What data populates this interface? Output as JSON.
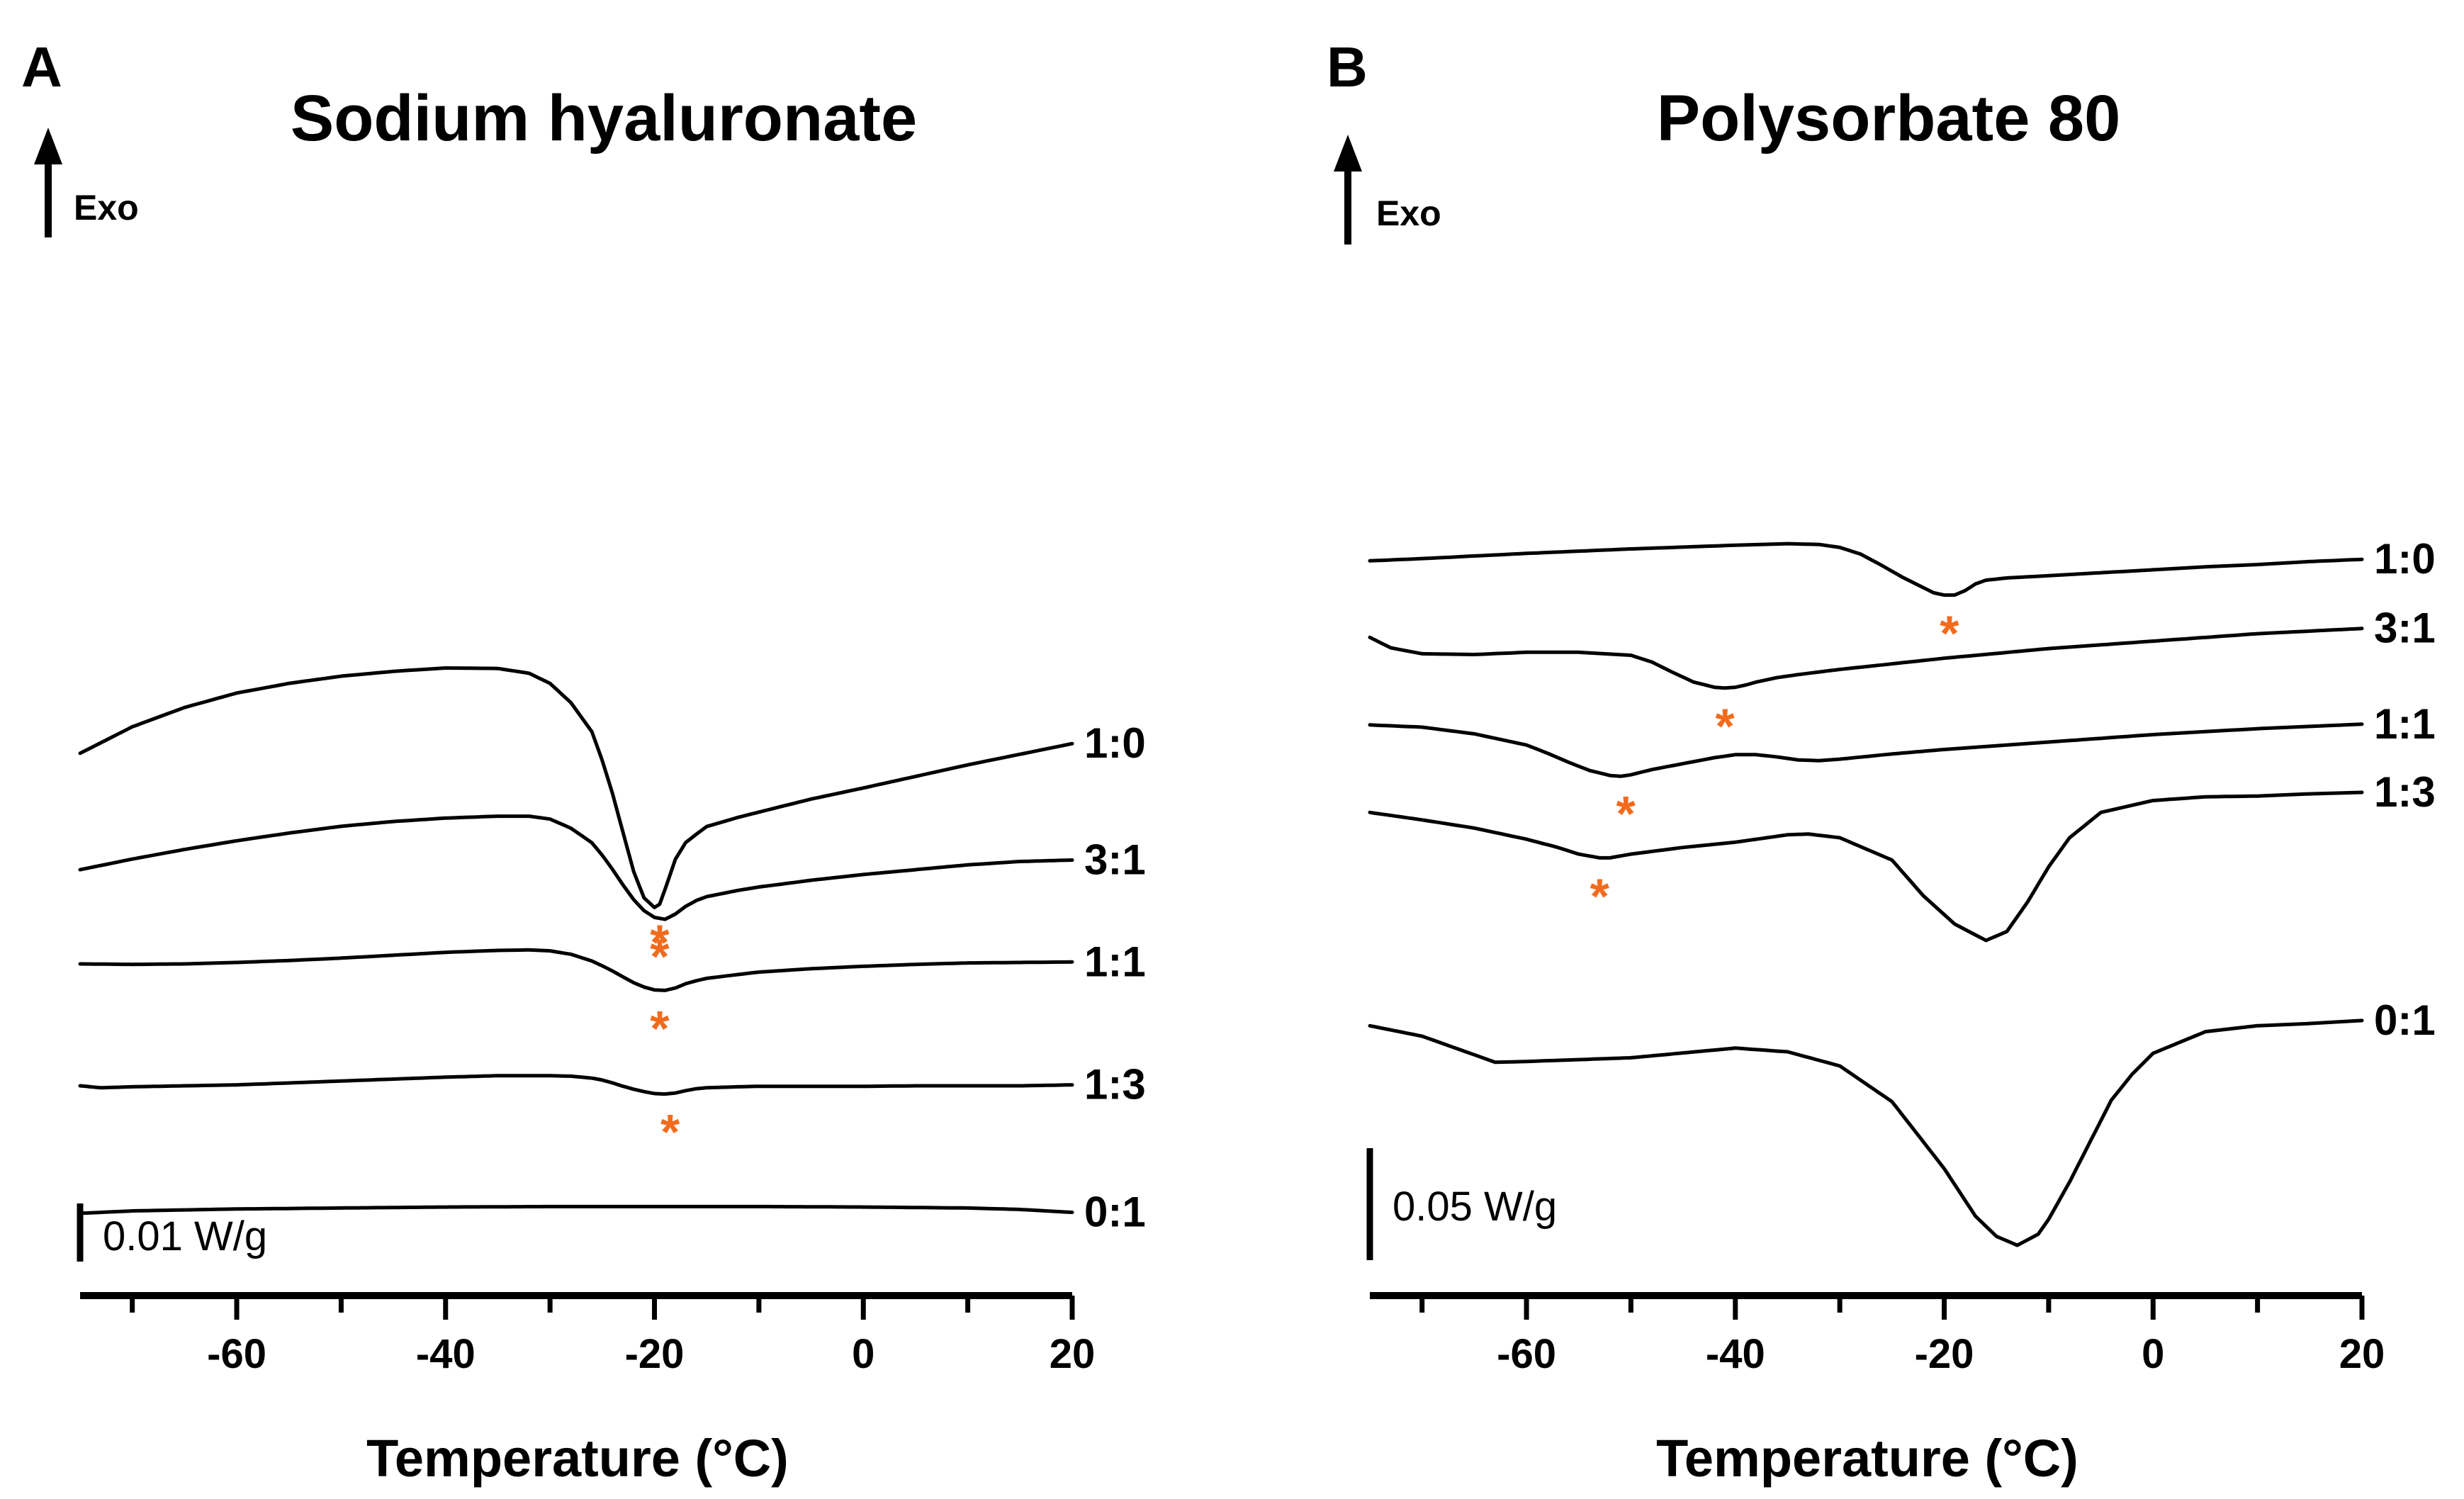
{
  "chart_data": [
    {
      "type": "line",
      "panel_label": "A",
      "title": "Sodium hyaluronate",
      "xlabel": "Temperature (°C)",
      "ylabel": "Exo",
      "xlim": [
        -75,
        20
      ],
      "x_ticks": [
        -60,
        -40,
        -20,
        0,
        20
      ],
      "x_tick_labels": [
        "-60",
        "-40",
        "-20",
        "0",
        "20"
      ],
      "scale_bar": {
        "label": "0.01 W/g",
        "value": 0.01,
        "units": "W/g"
      },
      "marker_symbol": "*",
      "marker_color": "#f26b1d",
      "y_units_per_W_g": 10000,
      "series": [
        {
          "name": "1:0",
          "offset": 1.9,
          "x": [
            -75,
            -70,
            -65,
            -60,
            -55,
            -50,
            -45,
            -40,
            -35,
            -32,
            -30,
            -28,
            -26,
            -25,
            -24,
            -23,
            -22,
            -21,
            -20,
            -19.5,
            -19,
            -18,
            -17,
            -16,
            -15,
            -12,
            -10,
            -5,
            0,
            5,
            10,
            15,
            20
          ],
          "y": [
            0,
            55,
            95,
            125,
            145,
            160,
            170,
            177,
            176,
            166,
            145,
            105,
            45,
            -15,
            -85,
            -165,
            -245,
            -300,
            -320,
            -313,
            -283,
            -220,
            -185,
            -168,
            -152,
            -133,
            -122,
            -95,
            -72,
            -48,
            -24,
            -2,
            20
          ],
          "marker_x": -19.5
        },
        {
          "name": "3:1",
          "offset": 0.85,
          "x": [
            -75,
            -70,
            -65,
            -60,
            -55,
            -50,
            -45,
            -40,
            -35,
            -32,
            -30,
            -28,
            -26,
            -25,
            -24,
            -23,
            -22,
            -21,
            -20,
            -19,
            -18,
            -17,
            -16,
            -15,
            -12,
            -10,
            -5,
            0,
            5,
            10,
            15,
            20
          ],
          "y": [
            0,
            22,
            42,
            60,
            76,
            90,
            100,
            107,
            111,
            111,
            105,
            86,
            56,
            30,
            0,
            -32,
            -62,
            -85,
            -99,
            -103,
            -92,
            -76,
            -64,
            -56,
            -43,
            -36,
            -22,
            -10,
            0,
            10,
            17,
            20
          ],
          "marker_x": -19.5
        },
        {
          "name": "1:1",
          "offset": 0,
          "x": [
            -75,
            -70,
            -65,
            -60,
            -55,
            -50,
            -45,
            -40,
            -35,
            -32,
            -30,
            -28,
            -26,
            -25,
            -24,
            -23,
            -22,
            -21,
            -20,
            -19,
            -18,
            -17,
            -16,
            -15,
            -12,
            -10,
            -5,
            0,
            5,
            10,
            15,
            20
          ],
          "y": [
            0,
            -1,
            0,
            3,
            7,
            12,
            18,
            24,
            28,
            29,
            27,
            20,
            6,
            -4,
            -15,
            -27,
            -39,
            -48,
            -54,
            -55,
            -50,
            -41,
            -35,
            -30,
            -22,
            -17,
            -10,
            -5,
            -1,
            2,
            3,
            4
          ],
          "marker_x": -19.5
        },
        {
          "name": "1:3",
          "offset": -1.1,
          "x": [
            -75,
            -73,
            -70,
            -65,
            -60,
            -55,
            -50,
            -45,
            -40,
            -35,
            -32,
            -30,
            -28,
            -26,
            -25,
            -24,
            -23,
            -22,
            -21,
            -20,
            -19,
            -18,
            -17,
            -16,
            -15,
            -12,
            -10,
            -5,
            0,
            5,
            10,
            15,
            20
          ],
          "y": [
            0,
            -4,
            -2,
            0,
            2,
            6,
            10,
            14,
            18,
            21,
            21,
            21,
            20,
            16,
            12,
            6,
            -1,
            -7,
            -12,
            -16,
            -17,
            -15,
            -10,
            -6,
            -4,
            -2,
            -1,
            -1,
            -1,
            0,
            0,
            0,
            2
          ],
          "marker_x": -18.5
        },
        {
          "name": "0:1",
          "offset": -2.25,
          "x": [
            -75,
            -70,
            -60,
            -50,
            -40,
            -30,
            -20,
            -10,
            0,
            10,
            15,
            20
          ],
          "y": [
            0,
            5,
            9,
            11,
            13,
            14,
            14,
            14,
            13,
            11,
            8,
            2
          ]
        }
      ]
    },
    {
      "type": "line",
      "panel_label": "B",
      "title": "Polysorbate 80",
      "xlabel": "Temperature (°C)",
      "ylabel": "Exo",
      "xlim": [
        -75,
        20
      ],
      "x_ticks": [
        -60,
        -40,
        -20,
        0,
        20
      ],
      "x_tick_labels": [
        "-60",
        "-40",
        "-20",
        "0",
        "20"
      ],
      "scale_bar": {
        "label": "0.05 W/g",
        "value": 0.05,
        "units": "W/g"
      },
      "marker_symbol": "*",
      "marker_color": "#f26b1d",
      "y_units_per_W_g": 2000,
      "series": [
        {
          "name": "1:0",
          "offset": 1.2,
          "x": [
            -75,
            -70,
            -60,
            -50,
            -40,
            -35,
            -32,
            -30,
            -28,
            -26,
            -24,
            -22,
            -21,
            -20,
            -19,
            -18,
            -17,
            -16,
            -14,
            -10,
            -5,
            0,
            5,
            10,
            15,
            20
          ],
          "y": [
            0,
            3,
            10,
            16,
            21,
            23,
            22,
            18,
            9,
            -6,
            -22,
            -36,
            -43,
            -46,
            -46,
            -40,
            -31,
            -26,
            -23,
            -20,
            -16,
            -12,
            -8,
            -5,
            -1,
            2
          ],
          "marker_x": -19.5
        },
        {
          "name": "3:1",
          "offset": 0.78,
          "x": [
            -75,
            -73,
            -70,
            -65,
            -60,
            -55,
            -50,
            -48,
            -46,
            -44,
            -42,
            -41,
            -40,
            -39,
            -38,
            -36,
            -34,
            -30,
            -20,
            -10,
            0,
            10,
            20
          ],
          "y": [
            0,
            -14,
            -22,
            -23,
            -20,
            -20,
            -24,
            -33,
            -47,
            -60,
            -67,
            -68,
            -67,
            -64,
            -60,
            -54,
            -50,
            -43,
            -28,
            -15,
            -5,
            5,
            12
          ],
          "marker_x": -41
        },
        {
          "name": "1:1",
          "offset": 0.3,
          "x": [
            -75,
            -70,
            -65,
            -60,
            -58,
            -56,
            -54,
            -52,
            -51,
            -50,
            -48,
            -45,
            -42,
            -40,
            -38,
            -36,
            -34,
            -32,
            -30,
            -25,
            -20,
            -10,
            0,
            10,
            20
          ],
          "y": [
            0,
            -3,
            -12,
            -27,
            -38,
            -50,
            -61,
            -68,
            -69,
            -67,
            -60,
            -52,
            -44,
            -40,
            -40,
            -43,
            -47,
            -48,
            -46,
            -39,
            -33,
            -23,
            -13,
            -5,
            1
          ],
          "marker_x": -50.5
        },
        {
          "name": "1:3",
          "offset": -0.18,
          "x": [
            -75,
            -70,
            -65,
            -60,
            -57,
            -55,
            -53,
            -52,
            -50,
            -45,
            -40,
            -35,
            -33,
            -30,
            -25,
            -22,
            -19,
            -16,
            -14,
            -12,
            -10,
            -8,
            -5,
            0,
            5,
            10,
            15,
            20
          ],
          "y": [
            0,
            -10,
            -21,
            -36,
            -47,
            -56,
            -61,
            -61,
            -56,
            -47,
            -40,
            -30,
            -29,
            -34,
            -64,
            -112,
            -150,
            -172,
            -160,
            -120,
            -73,
            -34,
            0,
            16,
            21,
            22,
            25,
            27
          ],
          "marker_x": -53
        },
        {
          "name": "0:1",
          "offset": -1.35,
          "x": [
            -75,
            -70,
            -66,
            -63,
            -60,
            -50,
            -40,
            -35,
            -30,
            -25,
            -20,
            -17,
            -15,
            -13,
            -11,
            -10,
            -8,
            -6,
            -4,
            -2,
            0,
            5,
            10,
            15,
            20
          ],
          "y": [
            0,
            -14,
            -34,
            -49,
            -48,
            -43,
            -30,
            -35,
            -54,
            -102,
            -192,
            -256,
            -283,
            -295,
            -280,
            -260,
            -210,
            -155,
            -100,
            -65,
            -37,
            -8,
            0,
            3,
            7
          ]
        }
      ]
    }
  ]
}
